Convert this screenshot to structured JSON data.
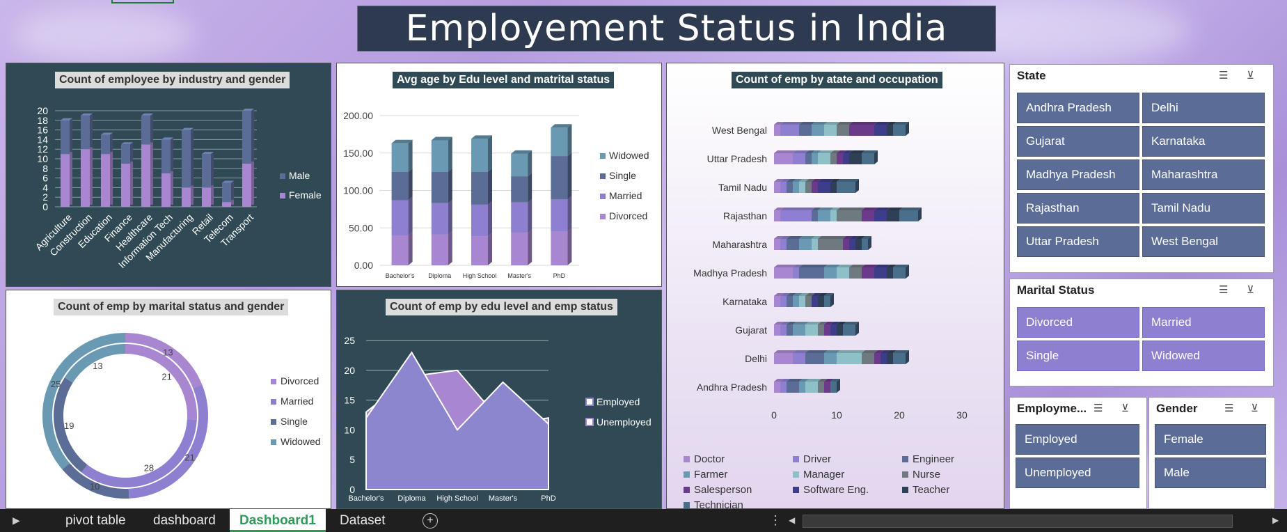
{
  "page_title": "Employement Status in India",
  "colors": {
    "dark_panel": "#2f4a55",
    "male": "#5b6d96",
    "female": "#a987d0",
    "divorced": "#a987d0",
    "married": "#8e7fd0",
    "single": "#5b6d96",
    "widowed": "#6a99b4",
    "employed": "#8b86cd",
    "unemployed": "#a987d0"
  },
  "chart_data": [
    {
      "type": "bar",
      "title": "Count of employee by industry and gender",
      "stacked": true,
      "categories": [
        "Agriculture",
        "Construction",
        "Education",
        "Finance",
        "Healthcare",
        "Information Tech",
        "Manufacturing",
        "Retail",
        "Telecom",
        "Transport"
      ],
      "series": [
        {
          "name": "Female",
          "values": [
            11,
            12,
            11,
            9,
            13,
            7,
            4,
            4,
            1,
            9
          ]
        },
        {
          "name": "Male",
          "values": [
            7,
            7,
            4,
            4,
            6,
            7,
            12,
            7,
            4,
            11
          ]
        }
      ],
      "ylim": [
        0,
        20
      ],
      "yticks": [
        "0",
        "2",
        "4",
        "6",
        "8",
        "10",
        "12",
        "14",
        "16",
        "18",
        "20"
      ],
      "legend": [
        "Male",
        "Female"
      ]
    },
    {
      "type": "bar",
      "title": "Avg age by Edu level and matrital status",
      "stacked": true,
      "categories": [
        "Bachelor's",
        "Diploma",
        "High School",
        "Master's",
        "PhD"
      ],
      "series": [
        {
          "name": "Divorced",
          "values": [
            40,
            41,
            39,
            43,
            45
          ]
        },
        {
          "name": "Married",
          "values": [
            47,
            42,
            42,
            41,
            43
          ]
        },
        {
          "name": "Single",
          "values": [
            38,
            42,
            44,
            35,
            58
          ]
        },
        {
          "name": "Widowed",
          "values": [
            38,
            42,
            44,
            30,
            38
          ]
        }
      ],
      "ylim": [
        0,
        200
      ],
      "yticks": [
        "0.00",
        "50.00",
        "100.00",
        "150.00",
        "200.00"
      ],
      "legend": [
        "Widowed",
        "Single",
        "Married",
        "Divorced"
      ]
    },
    {
      "type": "bar",
      "orientation": "horizontal",
      "title": "Count of emp by atate and occupation",
      "stacked": true,
      "categories": [
        "West Bengal",
        "Uttar Pradesh",
        "Tamil Nadu",
        "Rajasthan",
        "Maharashtra",
        "Madhya Pradesh",
        "Karnataka",
        "Gujarat",
        "Delhi",
        "Andhra Pradesh"
      ],
      "segment_colors": [
        "#a987d0",
        "#8e7fd0",
        "#5b6d96",
        "#6a99b4",
        "#8ec0c8",
        "#6f7a80",
        "#6b3a8a",
        "#3d3d8a",
        "#2f3f55",
        "#4a6f8a"
      ],
      "segments": [
        [
          1,
          3,
          2,
          2,
          2,
          2,
          4,
          2,
          1,
          2
        ],
        [
          3,
          2,
          1,
          1,
          2,
          1,
          1,
          1,
          2,
          2
        ],
        [
          1,
          1,
          1,
          1,
          1,
          1,
          1,
          2,
          1,
          3
        ],
        [
          1,
          5,
          1,
          2,
          1,
          4,
          2,
          2,
          2,
          3
        ],
        [
          1,
          1,
          2,
          2,
          1,
          4,
          1,
          1,
          1,
          1
        ],
        [
          3,
          1,
          4,
          2,
          2,
          2,
          2,
          2,
          1,
          2
        ],
        [
          1,
          1,
          1,
          1,
          1,
          1,
          0,
          1,
          1,
          1
        ],
        [
          1,
          1,
          1,
          2,
          2,
          1,
          1,
          1,
          1,
          2
        ],
        [
          3,
          2,
          3,
          2,
          4,
          2,
          1,
          1,
          1,
          2
        ],
        [
          1,
          1,
          2,
          1,
          2,
          1,
          1,
          0,
          0,
          1
        ]
      ],
      "xlim": [
        0,
        30
      ],
      "xticks": [
        "0",
        "10",
        "20",
        "30"
      ],
      "legend": [
        "Doctor",
        "Driver",
        "Engineer",
        "Farmer",
        "Manager",
        "Nurse",
        "Salesperson",
        "Software Eng.",
        "Teacher",
        "Technician"
      ]
    },
    {
      "type": "pie",
      "subtype": "doughnut",
      "title": "Count of emp by marital status and gender",
      "rings": [
        {
          "name": "Outer",
          "values": [
            13,
            21,
            10,
            25
          ]
        },
        {
          "name": "Inner",
          "values": [
            21,
            28,
            19,
            13
          ]
        }
      ],
      "labels": [
        "Divorced",
        "Married",
        "Single",
        "Widowed"
      ],
      "legend": [
        "Divorced",
        "Married",
        "Single",
        "Widowed"
      ]
    },
    {
      "type": "area",
      "title": "Count of emp by edu level and  emp status",
      "categories": [
        "Bachelor's",
        "Diploma",
        "High School",
        "Master's",
        "PhD"
      ],
      "series": [
        {
          "name": "Employed",
          "values": [
            12,
            23,
            10,
            18,
            11
          ]
        },
        {
          "name": "Unemployed",
          "values": [
            13,
            19,
            20,
            11,
            12
          ]
        }
      ],
      "ylim": [
        0,
        25
      ],
      "yticks": [
        "0",
        "5",
        "10",
        "15",
        "20",
        "25"
      ],
      "legend": [
        "Employed",
        "Unemployed"
      ]
    }
  ],
  "slicers": {
    "state": {
      "title": "State",
      "items": [
        "Andhra Pradesh",
        "Delhi",
        "Gujarat",
        "Karnataka",
        "Madhya Pradesh",
        "Maharashtra",
        "Rajasthan",
        "Tamil Nadu",
        "Uttar Pradesh",
        "West Bengal"
      ]
    },
    "marital": {
      "title": "Marital Status",
      "items": [
        "Divorced",
        "Married",
        "Single",
        "Widowed"
      ]
    },
    "employment": {
      "title": "Employme...",
      "items": [
        "Employed",
        "Unemployed"
      ]
    },
    "gender": {
      "title": "Gender",
      "items": [
        "Female",
        "Male"
      ]
    }
  },
  "tabs": [
    "pivot table",
    "dashboard",
    "Dashboard1",
    "Dataset"
  ],
  "active_tab": "Dashboard1"
}
